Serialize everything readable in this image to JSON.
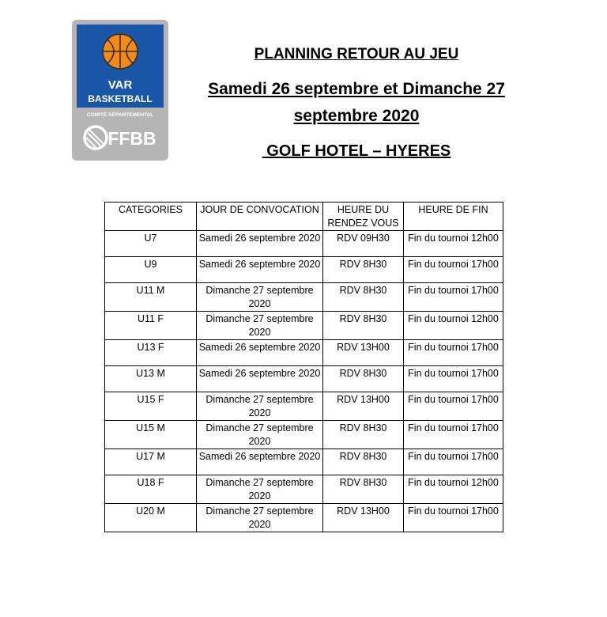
{
  "logo": {
    "line1": "VAR",
    "line2": "BASKETBALL",
    "line3": "COMITÉ DÉPARTEMENTAL",
    "line4": "FFBB",
    "colors": {
      "blue": "#1a56a8",
      "gray": "#a9a9a9",
      "ball": "#f08a1c"
    }
  },
  "title": "PLANNING RETOUR AU JEU",
  "subtitle_line1": "Samedi 26 septembre et Dimanche 27",
  "subtitle_line2": "septembre 2020",
  "location": " GOLF HOTEL – HYERES",
  "table": {
    "headers": [
      "CATEGORIES",
      "JOUR DE CONVOCATION",
      "HEURE DU RENDEZ VOUS",
      "HEURE DE FIN"
    ],
    "rows": [
      [
        "U7",
        "Samedi 26 septembre 2020",
        "RDV 09H30",
        "Fin du tournoi 12h00"
      ],
      [
        "U9",
        "Samedi 26 septembre 2020",
        "RDV 8H30",
        "Fin du tournoi 17h00"
      ],
      [
        "U11 M",
        "Dimanche 27 septembre 2020",
        "RDV 8H30",
        "Fin du tournoi 17h00"
      ],
      [
        "U11 F",
        "Dimanche 27 septembre 2020",
        "RDV 8H30",
        "Fin du tournoi 12h00"
      ],
      [
        "U13 F",
        "Samedi 26 septembre 2020",
        "RDV 13H00",
        "Fin du tournoi 17h00"
      ],
      [
        "U13 M",
        "Samedi 26 septembre 2020",
        "RDV 8H30",
        "Fin du tournoi 17h00"
      ],
      [
        "U15 F",
        "Dimanche 27 septembre 2020",
        "RDV 13H00",
        "Fin du tournoi 17h00"
      ],
      [
        "U15 M",
        "Dimanche 27 septembre 2020",
        "RDV 8H30",
        "Fin du tournoi 17h00"
      ],
      [
        "U17 M",
        "Samedi 26 septembre 2020",
        "RDV 8H30",
        "Fin du tournoi 17h00"
      ],
      [
        "U18 F",
        "Dimanche 27 septembre 2020",
        "RDV 8H30",
        "Fin du tournoi 12h00"
      ],
      [
        "U20 M",
        "Dimanche 27 septembre 2020",
        "RDV 13H00",
        "Fin du tournoi 17h00"
      ]
    ]
  }
}
